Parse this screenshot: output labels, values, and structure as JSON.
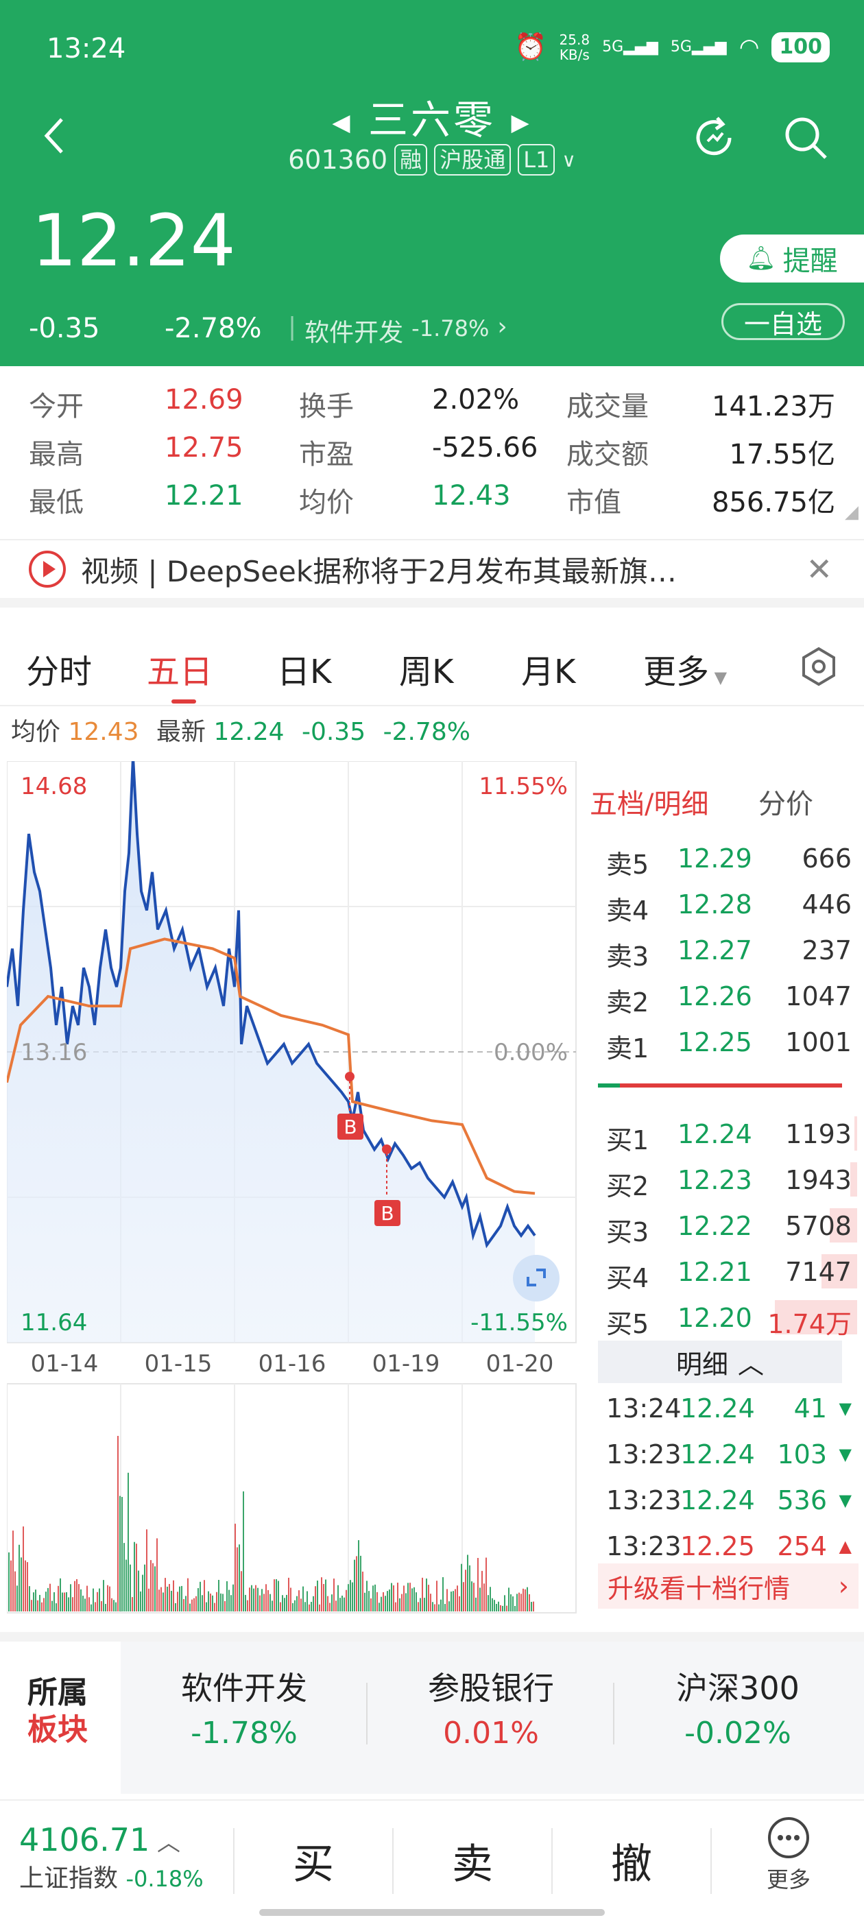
{
  "status": {
    "time": "13:24",
    "net_speed": "25.8",
    "net_unit": "KB/s",
    "sig1": "5G",
    "sig2": "5G",
    "battery": "100"
  },
  "header": {
    "title": "三六零",
    "code": "601360",
    "tag_margin": "融",
    "tag_connect": "沪股通",
    "tag_level": "L1"
  },
  "quote": {
    "price": "12.24",
    "change": "-0.35",
    "change_pct": "-2.78%",
    "sector": "软件开发",
    "sector_pct": "-1.78%",
    "remind": "提醒",
    "add_watch": "一自选"
  },
  "stats": {
    "open_label": "今开",
    "open": "12.69",
    "high_label": "最高",
    "high": "12.75",
    "low_label": "最低",
    "low": "12.21",
    "turnover_label": "换手",
    "turnover": "2.02%",
    "pe_label": "市盈",
    "pe": "-525.66",
    "avg_label": "均价",
    "avg": "12.43",
    "vol_label": "成交量",
    "vol": "141.23万",
    "amt_label": "成交额",
    "amt": "17.55亿",
    "mcap_label": "市值",
    "mcap": "856.75亿"
  },
  "news": {
    "text": "视频 | DeepSeek据称将于2月发布其最新旗…"
  },
  "tabs": [
    "分时",
    "五日",
    "日K",
    "周K",
    "月K",
    "更多"
  ],
  "info": {
    "avg_label": "均价",
    "avg": "12.43",
    "latest_label": "最新",
    "latest": "12.24",
    "chg": "-0.35",
    "pct": "-2.78%"
  },
  "chart": {
    "y_top": "14.68",
    "y_mid": "13.16",
    "y_bot": "11.64",
    "pct_top": "11.55%",
    "pct_mid": "0.00%",
    "pct_bot": "-11.55%",
    "dates": [
      "01-14",
      "01-15",
      "01-16",
      "01-19",
      "01-20"
    ],
    "marker": "B"
  },
  "book": {
    "title": "五档/明细",
    "alt": "分价",
    "asks": [
      {
        "label": "卖5",
        "price": "12.29",
        "vol": "666"
      },
      {
        "label": "卖4",
        "price": "12.28",
        "vol": "446"
      },
      {
        "label": "卖3",
        "price": "12.27",
        "vol": "237"
      },
      {
        "label": "卖2",
        "price": "12.26",
        "vol": "1047"
      },
      {
        "label": "卖1",
        "price": "12.25",
        "vol": "1001"
      }
    ],
    "bids": [
      {
        "label": "买1",
        "price": "12.24",
        "vol": "1193"
      },
      {
        "label": "买2",
        "price": "12.23",
        "vol": "1943"
      },
      {
        "label": "买3",
        "price": "12.22",
        "vol": "5708"
      },
      {
        "label": "买4",
        "price": "12.21",
        "vol": "7147"
      },
      {
        "label": "买5",
        "price": "12.20",
        "vol": "1.74万"
      }
    ],
    "detail_label": "明细",
    "ticks": [
      {
        "time": "13:24",
        "price": "12.24",
        "vol": "41"
      },
      {
        "time": "13:23",
        "price": "12.24",
        "vol": "103"
      },
      {
        "time": "13:23",
        "price": "12.24",
        "vol": "536"
      },
      {
        "time": "13:23",
        "price": "12.25",
        "vol": "254"
      }
    ],
    "upgrade": "升级看十档行情"
  },
  "blocks": {
    "label1": "所属",
    "label2": "板块",
    "items": [
      {
        "name": "软件开发",
        "pct": "-1.78%"
      },
      {
        "name": "参股银行",
        "pct": "0.01%"
      },
      {
        "name": "沪深300",
        "pct": "-0.02%"
      }
    ]
  },
  "bottom": {
    "index_val": "4106.71",
    "index_name": "上证指数",
    "index_pct": "-0.18%",
    "buy": "买",
    "sell": "卖",
    "cancel": "撤",
    "more": "更多"
  }
}
